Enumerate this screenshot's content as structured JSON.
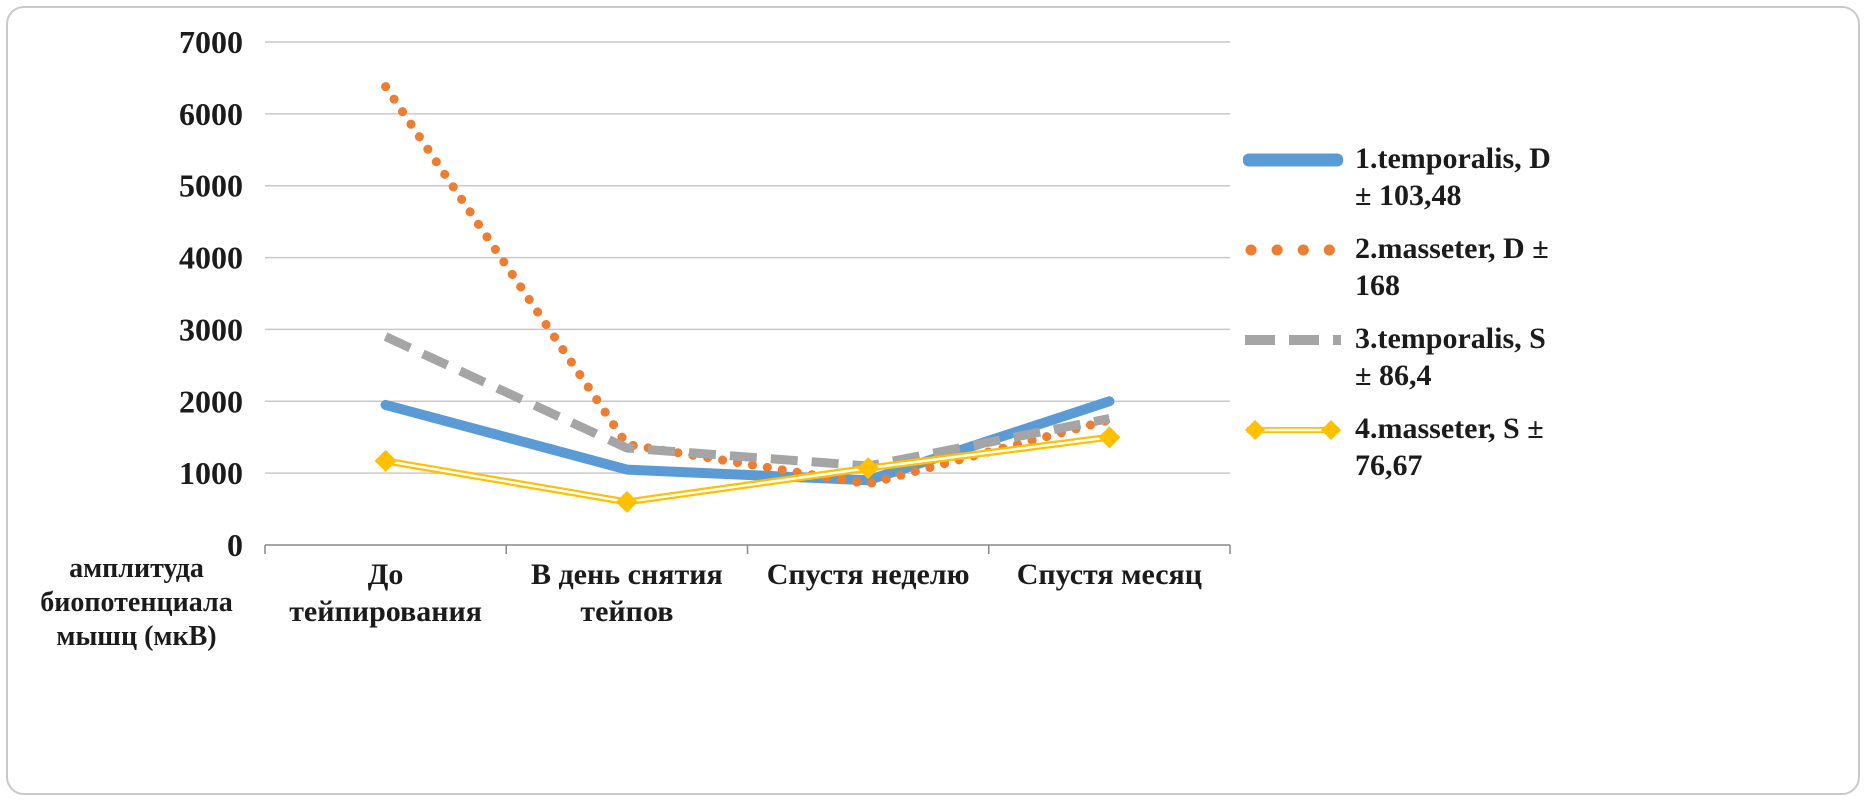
{
  "chart_data": {
    "type": "line",
    "title": "",
    "xlabel": "",
    "ylabel": "амплитуда биопотенциала мышц (мкВ)",
    "ylim": [
      0,
      7000
    ],
    "ytick_step": 1000,
    "yticks": [
      0,
      1000,
      2000,
      3000,
      4000,
      5000,
      6000,
      7000
    ],
    "grid": true,
    "legend_position": "right",
    "categories": [
      "До тейпирования",
      "В день снятия тейпов",
      "Спустя неделю",
      "Спустя месяц"
    ],
    "series": [
      {
        "name": "1.temporalis, D ± 103,48",
        "color": "#5B9BD5",
        "style": "solid",
        "values": [
          1950,
          1050,
          900,
          2000
        ]
      },
      {
        "name": "2.masseter, D ± 168",
        "color": "#ED7D31",
        "style": "dotted",
        "values": [
          6380,
          1400,
          850,
          1740
        ]
      },
      {
        "name": "3.temporalis, S ± 86,4",
        "color": "#A5A5A5",
        "style": "dashed",
        "values": [
          2900,
          1350,
          1100,
          1760
        ]
      },
      {
        "name": "4.masseter, S ± 76,67",
        "color": "#FFC000",
        "style": "line-markers",
        "values": [
          1170,
          600,
          1070,
          1500
        ]
      }
    ],
    "colors": {
      "gridline": "#C9C9C9",
      "axis": "#898989",
      "text": "#1b1b1b",
      "marker_core": "#ffffff"
    }
  }
}
